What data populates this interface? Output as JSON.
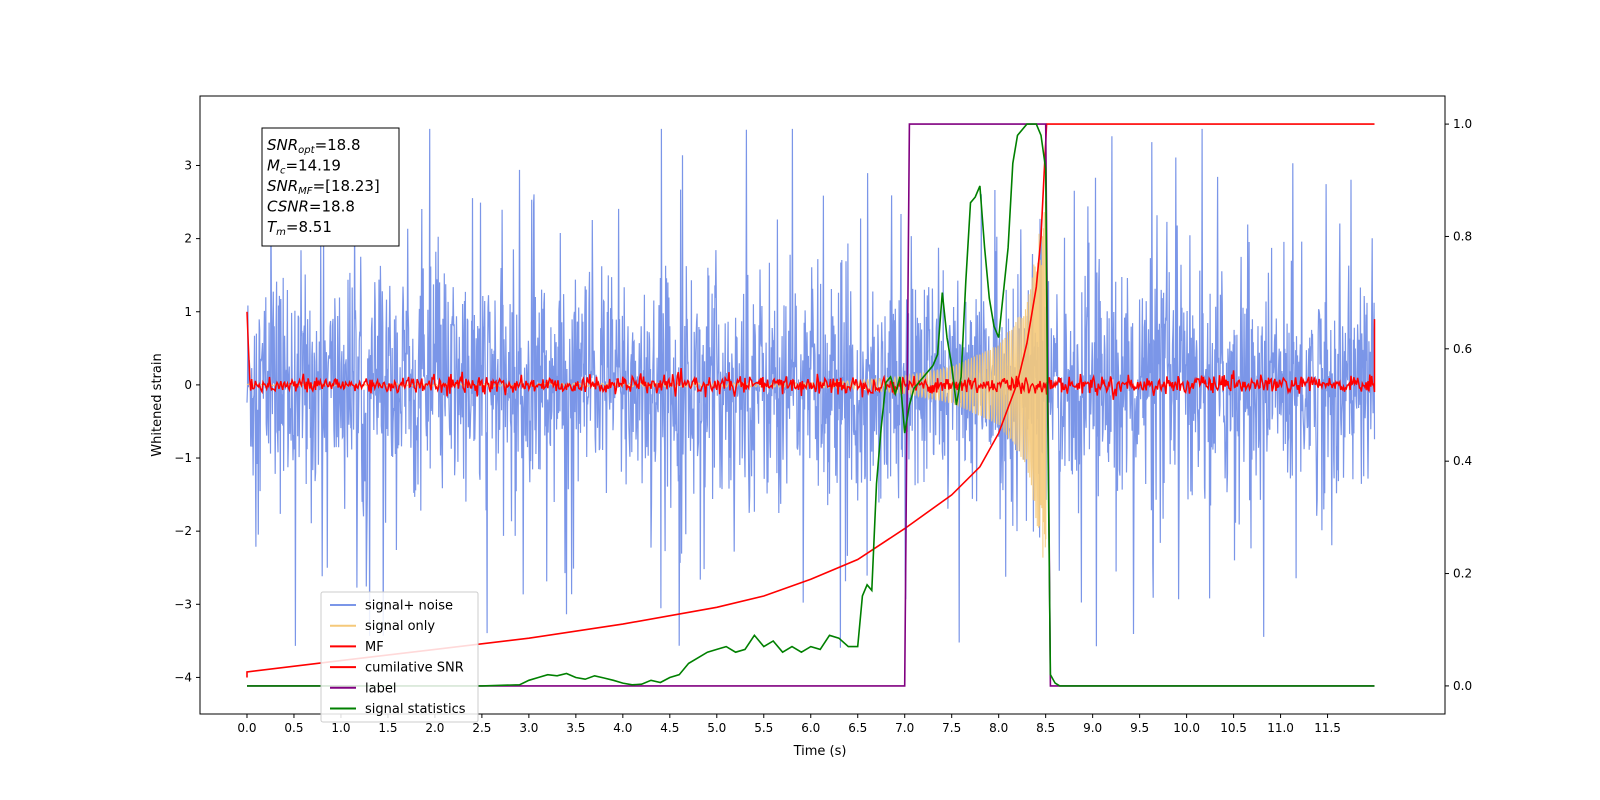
{
  "chart_data": {
    "type": "line",
    "xlabel": "Time (s)",
    "ylabel": "Whitened strain",
    "xlim": [
      -0.5,
      12.75
    ],
    "ylim_left": [
      -4.5,
      3.95
    ],
    "ylim_right": [
      -0.05,
      1.05
    ],
    "x_ticks": [
      "0.0",
      "0.5",
      "1.0",
      "1.5",
      "2.0",
      "2.5",
      "3.0",
      "3.5",
      "4.0",
      "4.5",
      "5.0",
      "5.5",
      "6.0",
      "6.5",
      "7.0",
      "7.5",
      "8.0",
      "8.5",
      "9.0",
      "9.5",
      "10.0",
      "10.5",
      "11.0",
      "11.5"
    ],
    "y_ticks_left": [
      "3",
      "2",
      "1",
      "0",
      "−1",
      "−2",
      "−3",
      "−4"
    ],
    "y_ticks_right": [
      "1.0",
      "0.8",
      "0.6",
      "0.4",
      "0.2",
      "0.0"
    ],
    "grid": false,
    "legend_position": "lower-left",
    "annotation_box": {
      "lines": [
        {
          "base": "SNR",
          "sub": "opt",
          "value": "=18.8"
        },
        {
          "base": "M",
          "sub": "c",
          "value": "=14.19"
        },
        {
          "base": "SNR",
          "sub": "MF",
          "value": "=[18.23]"
        },
        {
          "base": "CSNR",
          "sub": "",
          "value": "=18.8"
        },
        {
          "base": "T",
          "sub": "m",
          "value": "=8.51"
        }
      ]
    },
    "series": [
      {
        "name": "signal+ noise",
        "axis": "left",
        "color": "#7b96e8",
        "note": "noise envelope",
        "x": [
          0.0,
          12.0
        ],
        "y_mean": [
          0.0,
          0.0
        ],
        "y_typical_range": [
          -1.6,
          1.6
        ],
        "y_peak_range": [
          -4.1,
          3.5
        ]
      },
      {
        "name": "signal only",
        "axis": "left",
        "color": "#f5c97a",
        "x": [
          0.0,
          6.0,
          6.5,
          7.0,
          7.5,
          8.0,
          8.3,
          8.5,
          8.51
        ],
        "amplitude": [
          0.01,
          0.03,
          0.06,
          0.12,
          0.25,
          0.55,
          1.1,
          2.6,
          0.0
        ]
      },
      {
        "name": "MF",
        "axis": "left",
        "color": "#ff0000",
        "x": [
          0.0,
          0.03,
          12.0,
          12.0
        ],
        "y": [
          1.0,
          0.05,
          0.05,
          0.9
        ],
        "noise_amplitude": 0.12
      },
      {
        "name": "cumilative SNR",
        "axis": "right",
        "color": "#ff0000",
        "x": [
          0.0,
          0.0,
          1.0,
          2.0,
          3.0,
          4.0,
          5.0,
          5.5,
          6.0,
          6.5,
          7.0,
          7.5,
          7.8,
          8.0,
          8.2,
          8.3,
          8.4,
          8.45,
          8.51,
          12.0
        ],
        "y": [
          0.015,
          0.025,
          0.045,
          0.065,
          0.085,
          0.11,
          0.14,
          0.16,
          0.19,
          0.225,
          0.28,
          0.34,
          0.39,
          0.45,
          0.54,
          0.61,
          0.71,
          0.8,
          1.0,
          1.0
        ]
      },
      {
        "name": "label",
        "axis": "right",
        "color": "#800080",
        "x": [
          0.0,
          7.0,
          7.05,
          8.5,
          8.55,
          12.0
        ],
        "y": [
          0.0,
          0.0,
          1.0,
          1.0,
          0.0,
          0.0
        ]
      },
      {
        "name": "signal statistics",
        "axis": "right",
        "color": "#008000",
        "x": [
          0.0,
          0.5,
          1.0,
          1.5,
          2.0,
          2.5,
          2.9,
          3.0,
          3.1,
          3.2,
          3.3,
          3.4,
          3.5,
          3.6,
          3.7,
          3.8,
          3.9,
          4.0,
          4.1,
          4.2,
          4.3,
          4.4,
          4.5,
          4.6,
          4.7,
          4.8,
          4.9,
          5.0,
          5.1,
          5.2,
          5.3,
          5.4,
          5.5,
          5.6,
          5.7,
          5.8,
          5.9,
          6.0,
          6.1,
          6.2,
          6.3,
          6.4,
          6.5,
          6.55,
          6.6,
          6.65,
          6.7,
          6.75,
          6.8,
          6.85,
          6.9,
          6.95,
          7.0,
          7.05,
          7.1,
          7.2,
          7.3,
          7.35,
          7.4,
          7.45,
          7.5,
          7.55,
          7.6,
          7.65,
          7.7,
          7.75,
          7.8,
          7.85,
          7.9,
          7.95,
          8.0,
          8.05,
          8.1,
          8.15,
          8.2,
          8.3,
          8.4,
          8.45,
          8.5,
          8.52,
          8.55,
          8.6,
          8.65,
          12.0
        ],
        "y": [
          0.0,
          0.0,
          0.0,
          0.0,
          0.0,
          0.0,
          0.002,
          0.01,
          0.015,
          0.02,
          0.018,
          0.022,
          0.015,
          0.012,
          0.018,
          0.014,
          0.01,
          0.005,
          0.002,
          0.003,
          0.01,
          0.006,
          0.015,
          0.02,
          0.04,
          0.05,
          0.06,
          0.065,
          0.07,
          0.06,
          0.065,
          0.09,
          0.07,
          0.08,
          0.06,
          0.07,
          0.06,
          0.07,
          0.065,
          0.09,
          0.085,
          0.07,
          0.07,
          0.16,
          0.18,
          0.17,
          0.36,
          0.46,
          0.54,
          0.55,
          0.52,
          0.55,
          0.45,
          0.5,
          0.53,
          0.55,
          0.57,
          0.59,
          0.7,
          0.62,
          0.57,
          0.5,
          0.55,
          0.72,
          0.86,
          0.87,
          0.89,
          0.78,
          0.69,
          0.64,
          0.62,
          0.7,
          0.78,
          0.93,
          0.98,
          1.0,
          1.0,
          0.98,
          0.92,
          0.52,
          0.02,
          0.005,
          0.0,
          0.0
        ]
      }
    ]
  }
}
